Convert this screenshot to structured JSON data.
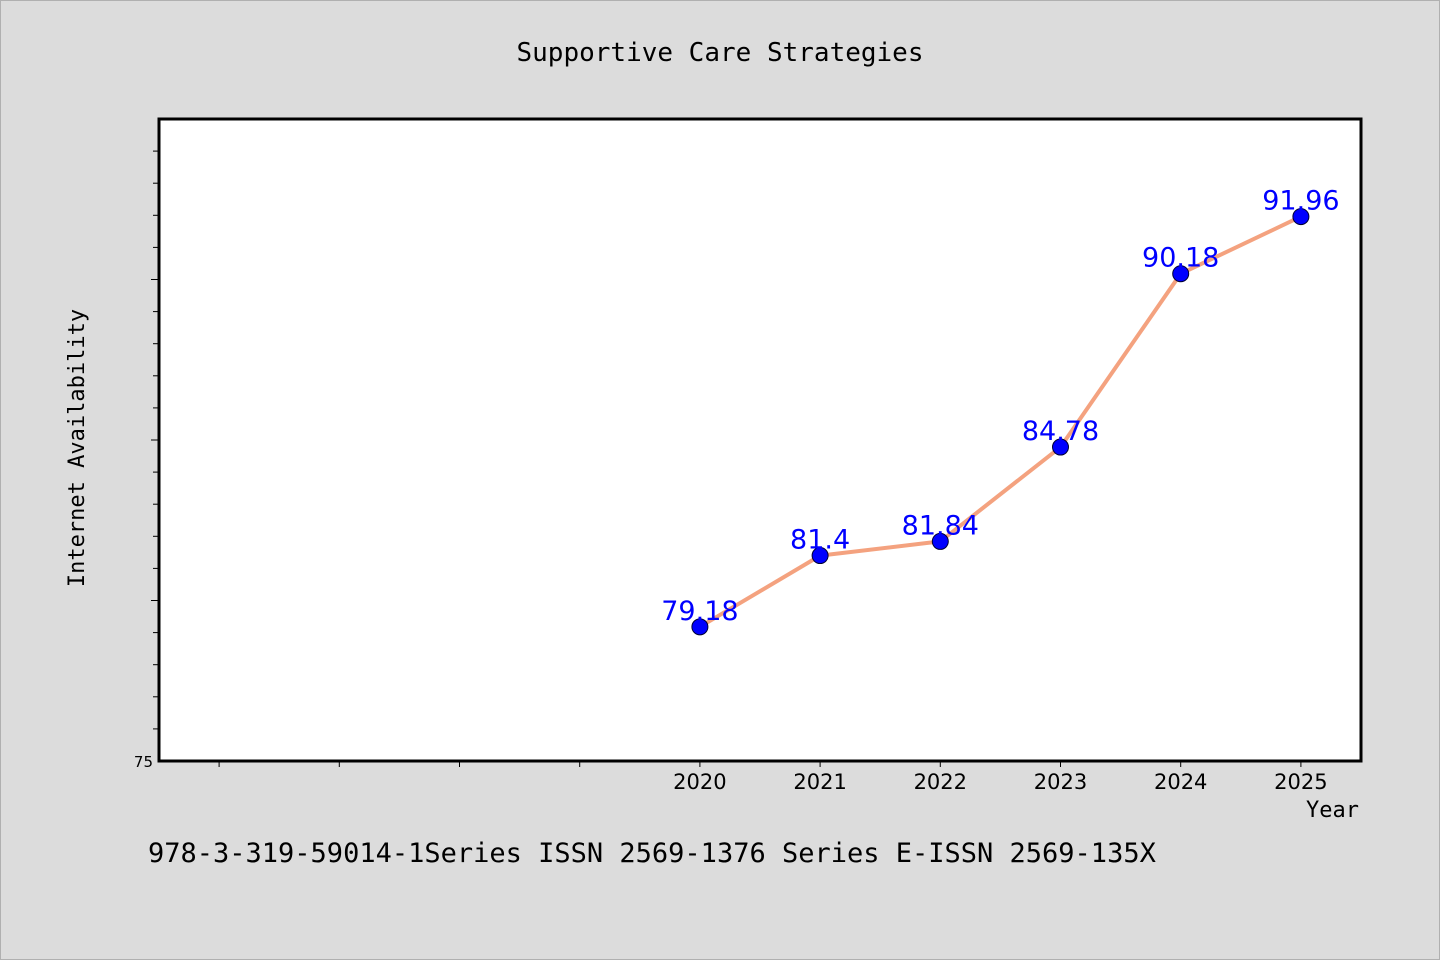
{
  "chart_data": {
    "type": "line",
    "title": "Supportive Care Strategies",
    "xlabel": "Year",
    "ylabel": "Internet Availability",
    "x": [
      2020,
      2021,
      2022,
      2023,
      2024,
      2025
    ],
    "x_ticks": [
      "2020",
      "2021",
      "2022",
      "2023",
      "2024",
      "2025"
    ],
    "xlim": [
      2015.5,
      2025.5
    ],
    "ylim": [
      75,
      95
    ],
    "y_tick_labels": [
      "75"
    ],
    "series": [
      {
        "values": [
          79.18,
          81.4,
          81.84,
          84.78,
          90.18,
          91.96
        ],
        "data_labels": [
          "79.18",
          "81.4",
          "81.84",
          "84.78",
          "90.18",
          "91.96"
        ],
        "line_color": "#f4a27f",
        "marker_color": "#0000ff"
      }
    ],
    "label_color": "#0000ff",
    "grid": false,
    "legend": "none"
  },
  "footer": {
    "text": "978-3-319-59014-1Series ISSN 2569-1376 Series E-ISSN 2569-135X"
  }
}
